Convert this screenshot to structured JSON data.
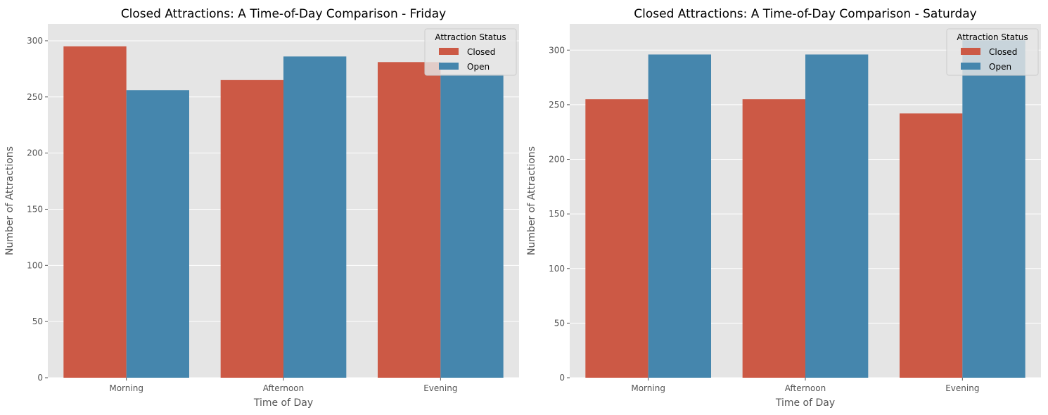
{
  "chart_data": [
    {
      "type": "bar",
      "title": "Closed Attractions: A Time-of-Day Comparison - Friday",
      "xlabel": "Time of Day",
      "ylabel": "Number of Attractions",
      "categories": [
        "Morning",
        "Afternoon",
        "Evening"
      ],
      "series": [
        {
          "name": "Closed",
          "values": [
            295,
            265,
            281
          ],
          "color": "#cc5945"
        },
        {
          "name": "Open",
          "values": [
            256,
            286,
            270
          ],
          "color": "#4586ad"
        }
      ],
      "ylim": [
        0,
        315
      ],
      "yticks": [
        0,
        50,
        100,
        150,
        200,
        250,
        300
      ],
      "grid": true,
      "legend": {
        "title": "Attraction Status",
        "position": "top-right"
      }
    },
    {
      "type": "bar",
      "title": "Closed Attractions: A Time-of-Day Comparison - Saturday",
      "xlabel": "Time of Day",
      "ylabel": "Number of Attractions",
      "categories": [
        "Morning",
        "Afternoon",
        "Evening"
      ],
      "series": [
        {
          "name": "Closed",
          "values": [
            255,
            255,
            242
          ],
          "color": "#cc5945"
        },
        {
          "name": "Open",
          "values": [
            296,
            296,
            309
          ],
          "color": "#4586ad"
        }
      ],
      "ylim": [
        0,
        324
      ],
      "yticks": [
        0,
        50,
        100,
        150,
        200,
        250,
        300
      ],
      "grid": true,
      "legend": {
        "title": "Attraction Status",
        "position": "top-right"
      }
    }
  ],
  "style": {
    "plot_background": "#e5e5e5",
    "grid_color": "#ffffff"
  }
}
